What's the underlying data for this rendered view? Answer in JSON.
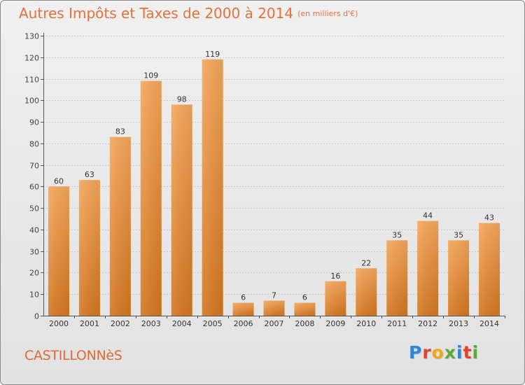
{
  "header": {
    "title": "Autres Impôts et Taxes de 2000 à 2014",
    "unit": "(en milliers d'€)"
  },
  "footer": {
    "commune": "CASTILLONNèS",
    "logo_letters": [
      "P",
      "r",
      "o",
      "x",
      "i",
      "t",
      "i"
    ],
    "logo_colors": [
      "#2e86d4",
      "#e8402f",
      "#f2a619",
      "#5aaa3a",
      "#2e86d4",
      "#e8402f",
      "#5aaa3a"
    ]
  },
  "colors": {
    "title": "#e8703a",
    "bar_light": "#f5a65a",
    "bar_dark": "#d4761f"
  },
  "chart_data": {
    "type": "bar",
    "title": "Autres Impôts et Taxes de 2000 à 2014",
    "xlabel": "",
    "ylabel": "",
    "categories": [
      "2000",
      "2001",
      "2002",
      "2003",
      "2004",
      "2005",
      "2006",
      "2007",
      "2008",
      "2009",
      "2010",
      "2011",
      "2012",
      "2013",
      "2014"
    ],
    "values": [
      60,
      63,
      83,
      109,
      98,
      119,
      6,
      7,
      6,
      16,
      22,
      35,
      44,
      35,
      43
    ],
    "ylim": [
      0,
      130
    ],
    "yticks": [
      0,
      10,
      20,
      30,
      40,
      50,
      60,
      70,
      80,
      90,
      100,
      110,
      120,
      130
    ],
    "grid": true,
    "data_labels": true
  }
}
